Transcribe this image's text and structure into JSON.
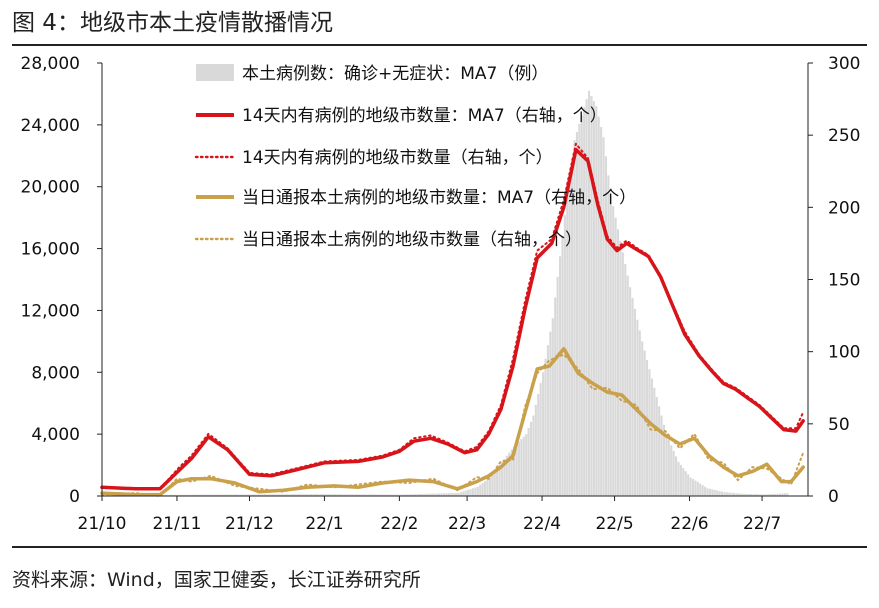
{
  "figure_title": "图 4：地级市本土疫情散播情况",
  "source_note": "资料来源：Wind，国家卫健委，长江证券研究所",
  "colors": {
    "bar": "#d9d9d9",
    "red": "#d7141a",
    "gold": "#c9a04b",
    "axis": "#222222"
  },
  "chart_data": {
    "type": "line",
    "x_tick_labels": [
      "21/10",
      "21/11",
      "21/12",
      "22/1",
      "22/2",
      "22/3",
      "22/4",
      "22/5",
      "22/6",
      "22/7"
    ],
    "y_left": {
      "range": [
        0,
        28000
      ],
      "ticks": [
        0,
        4000,
        8000,
        12000,
        16000,
        20000,
        24000,
        28000
      ],
      "tick_labels": [
        "0",
        "4,000",
        "8,000",
        "12,000",
        "16,000",
        "20,000",
        "24,000",
        "28,000"
      ]
    },
    "y_right": {
      "range": [
        0,
        300
      ],
      "ticks": [
        0,
        50,
        100,
        150,
        200,
        250,
        300
      ],
      "tick_labels": [
        "0",
        "50",
        "100",
        "150",
        "200",
        "250",
        "300"
      ]
    },
    "legend_position": "top-center",
    "series": [
      {
        "name": "本土病例数：确诊+无症状：MA7（例）",
        "style": "area",
        "axis": "left",
        "x": [
          "2021-10-01",
          "2021-11-01",
          "2021-12-01",
          "2022-01-01",
          "2022-02-01",
          "2022-02-25",
          "2022-03-05",
          "2022-03-10",
          "2022-03-15",
          "2022-03-20",
          "2022-03-25",
          "2022-03-28",
          "2022-04-01",
          "2022-04-05",
          "2022-04-08",
          "2022-04-11",
          "2022-04-14",
          "2022-04-17",
          "2022-04-20",
          "2022-04-23",
          "2022-04-26",
          "2022-04-29",
          "2022-05-03",
          "2022-05-07",
          "2022-05-12",
          "2022-05-17",
          "2022-05-22",
          "2022-05-27",
          "2022-06-01",
          "2022-06-08",
          "2022-06-15",
          "2022-06-22",
          "2022-07-01",
          "2022-07-08",
          "2022-07-12"
        ],
        "values": [
          30,
          80,
          100,
          120,
          90,
          200,
          600,
          1200,
          2200,
          3200,
          4000,
          5200,
          8000,
          11500,
          15500,
          19500,
          23000,
          24600,
          26200,
          25200,
          23200,
          19500,
          16500,
          13500,
          10000,
          7000,
          4000,
          2200,
          1200,
          500,
          250,
          150,
          100,
          150,
          200
        ]
      },
      {
        "name": "14天内有病例的地级市数量：MA7（右轴，个）",
        "style": "line",
        "axis": "right",
        "x": [
          "2021-10-01",
          "2021-10-15",
          "2021-10-25",
          "2021-11-02",
          "2021-11-07",
          "2021-11-14",
          "2021-11-22",
          "2021-12-01",
          "2021-12-10",
          "2021-12-20",
          "2022-01-01",
          "2022-01-15",
          "2022-01-25",
          "2022-02-01",
          "2022-02-07",
          "2022-02-14",
          "2022-02-21",
          "2022-02-28",
          "2022-03-05",
          "2022-03-10",
          "2022-03-15",
          "2022-03-20",
          "2022-03-25",
          "2022-03-30",
          "2022-04-05",
          "2022-04-10",
          "2022-04-15",
          "2022-04-20",
          "2022-04-24",
          "2022-04-28",
          "2022-05-02",
          "2022-05-06",
          "2022-05-10",
          "2022-05-15",
          "2022-05-20",
          "2022-05-25",
          "2022-05-30",
          "2022-06-05",
          "2022-06-10",
          "2022-06-15",
          "2022-06-20",
          "2022-06-25",
          "2022-06-30",
          "2022-07-05",
          "2022-07-10",
          "2022-07-15",
          "2022-07-18"
        ],
        "values": [
          6,
          5,
          5,
          18,
          26,
          41,
          32,
          15,
          14,
          18,
          23,
          24,
          27,
          31,
          38,
          40,
          36,
          30,
          32,
          43,
          60,
          90,
          130,
          165,
          175,
          200,
          240,
          232,
          202,
          178,
          170,
          175,
          171,
          166,
          152,
          132,
          112,
          97,
          87,
          78,
          74,
          68,
          62,
          54,
          46,
          45,
          52
        ]
      },
      {
        "name": "14天内有病例的地级市数量（右轴，个）",
        "style": "dotted",
        "axis": "right",
        "x": [
          "2021-10-01",
          "2021-10-15",
          "2021-10-25",
          "2021-11-02",
          "2021-11-07",
          "2021-11-14",
          "2021-11-22",
          "2021-12-01",
          "2021-12-10",
          "2021-12-20",
          "2022-01-01",
          "2022-01-15",
          "2022-01-25",
          "2022-02-01",
          "2022-02-07",
          "2022-02-14",
          "2022-02-21",
          "2022-02-28",
          "2022-03-05",
          "2022-03-10",
          "2022-03-15",
          "2022-03-20",
          "2022-03-25",
          "2022-03-30",
          "2022-04-05",
          "2022-04-10",
          "2022-04-15",
          "2022-04-20",
          "2022-04-24",
          "2022-04-28",
          "2022-05-02",
          "2022-05-06",
          "2022-05-10",
          "2022-05-15",
          "2022-05-20",
          "2022-05-25",
          "2022-05-30",
          "2022-06-05",
          "2022-06-10",
          "2022-06-15",
          "2022-06-20",
          "2022-06-25",
          "2022-06-30",
          "2022-07-05",
          "2022-07-10",
          "2022-07-15",
          "2022-07-18"
        ],
        "values": [
          6,
          5,
          5,
          20,
          28,
          43,
          33,
          16,
          15,
          19,
          24,
          25,
          28,
          32,
          40,
          42,
          37,
          31,
          34,
          45,
          63,
          95,
          135,
          170,
          178,
          205,
          244,
          234,
          205,
          180,
          172,
          177,
          172,
          167,
          153,
          133,
          114,
          98,
          88,
          79,
          75,
          69,
          63,
          55,
          47,
          47,
          58
        ]
      },
      {
        "name": "当日通报本土病例的地级市数量：MA7（右轴，个）",
        "style": "line",
        "axis": "right",
        "x": [
          "2021-10-01",
          "2021-10-15",
          "2021-10-25",
          "2021-11-01",
          "2021-11-07",
          "2021-11-15",
          "2021-11-25",
          "2021-12-05",
          "2021-12-15",
          "2021-12-25",
          "2022-01-05",
          "2022-01-15",
          "2022-01-25",
          "2022-02-05",
          "2022-02-15",
          "2022-02-25",
          "2022-03-05",
          "2022-03-10",
          "2022-03-15",
          "2022-03-20",
          "2022-03-25",
          "2022-03-30",
          "2022-04-04",
          "2022-04-10",
          "2022-04-16",
          "2022-04-22",
          "2022-04-28",
          "2022-05-04",
          "2022-05-10",
          "2022-05-16",
          "2022-05-22",
          "2022-05-28",
          "2022-06-03",
          "2022-06-09",
          "2022-06-15",
          "2022-06-21",
          "2022-06-27",
          "2022-07-03",
          "2022-07-09",
          "2022-07-13",
          "2022-07-18"
        ],
        "values": [
          2,
          1,
          1,
          10,
          12,
          12,
          9,
          3,
          4,
          6,
          7,
          6,
          9,
          11,
          10,
          5,
          10,
          14,
          20,
          28,
          58,
          88,
          90,
          102,
          85,
          78,
          72,
          70,
          60,
          50,
          42,
          36,
          40,
          28,
          20,
          14,
          17,
          22,
          10,
          10,
          20
        ]
      },
      {
        "name": "当日通报本土病例的地级市数量（右轴，个）",
        "style": "dotted",
        "axis": "right",
        "x": [
          "2021-10-01",
          "2021-10-15",
          "2021-10-25",
          "2021-11-01",
          "2021-11-07",
          "2021-11-15",
          "2021-11-25",
          "2021-12-05",
          "2021-12-15",
          "2021-12-25",
          "2022-01-05",
          "2022-01-15",
          "2022-01-25",
          "2022-02-05",
          "2022-02-15",
          "2022-02-25",
          "2022-03-05",
          "2022-03-10",
          "2022-03-15",
          "2022-03-20",
          "2022-03-25",
          "2022-03-30",
          "2022-04-04",
          "2022-04-10",
          "2022-04-16",
          "2022-04-22",
          "2022-04-28",
          "2022-05-04",
          "2022-05-10",
          "2022-05-16",
          "2022-05-22",
          "2022-05-28",
          "2022-06-03",
          "2022-06-09",
          "2022-06-15",
          "2022-06-21",
          "2022-06-27",
          "2022-07-03",
          "2022-07-09",
          "2022-07-13",
          "2022-07-18"
        ],
        "values": [
          1,
          2,
          0,
          12,
          10,
          14,
          7,
          5,
          3,
          8,
          6,
          8,
          10,
          9,
          12,
          4,
          13,
          12,
          24,
          25,
          62,
          85,
          94,
          98,
          88,
          74,
          75,
          66,
          63,
          46,
          45,
          33,
          43,
          25,
          23,
          11,
          20,
          19,
          12,
          8,
          30
        ]
      }
    ]
  }
}
